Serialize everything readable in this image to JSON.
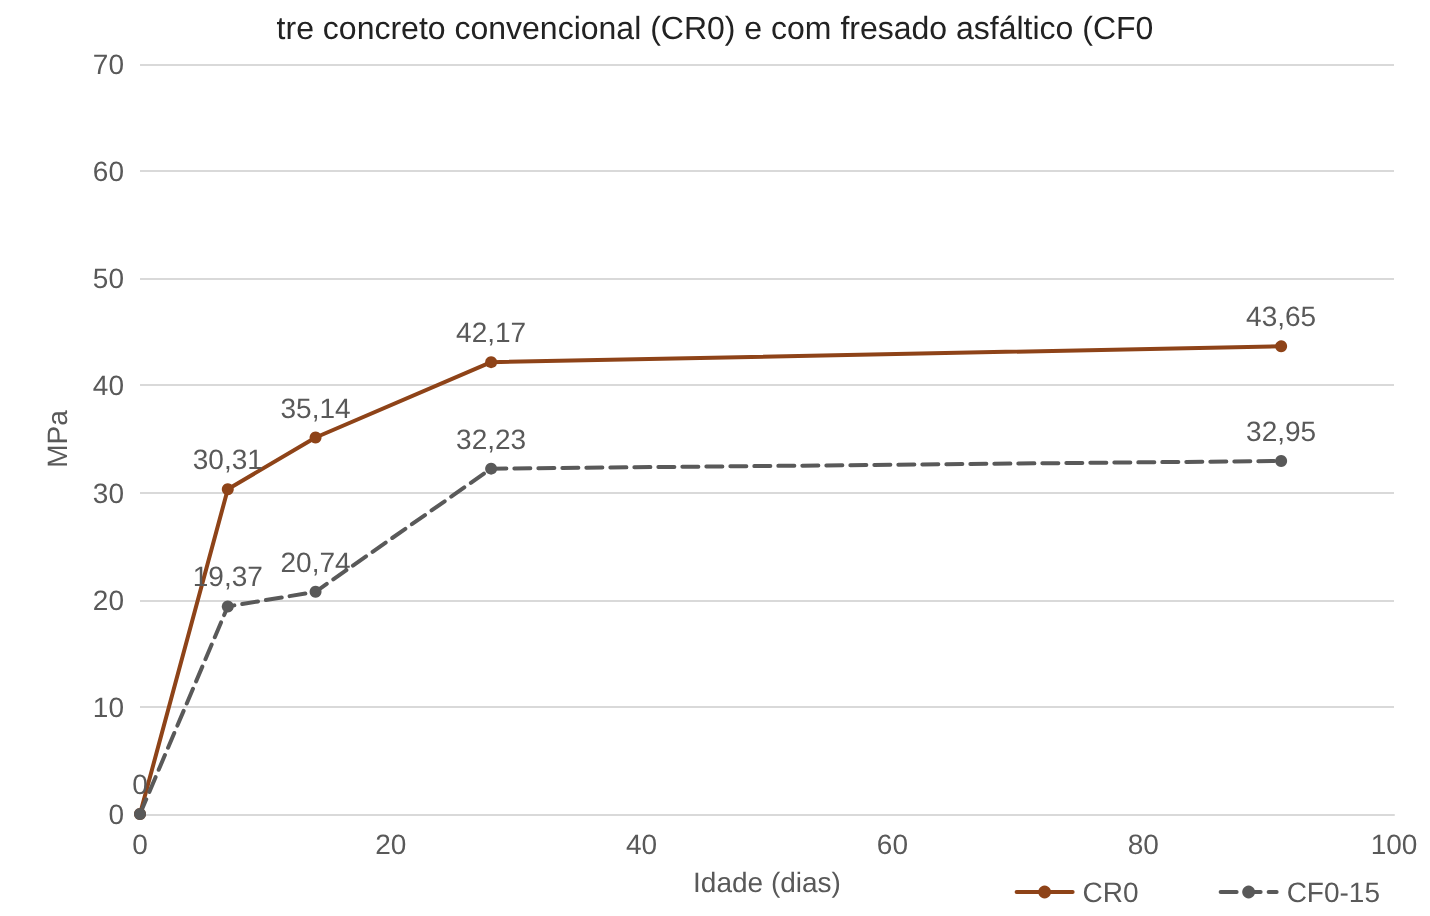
{
  "chart_data": {
    "type": "line",
    "title": "tre concreto convencional (CR0) e com fresado asfáltico (CF0",
    "xlabel": "Idade (dias)",
    "ylabel": "MPa",
    "x": [
      0,
      7,
      14,
      28,
      91
    ],
    "series": [
      {
        "name": "CR0",
        "color": "#8e4318",
        "values": [
          0,
          30.31,
          35.14,
          42.17,
          43.65
        ],
        "value_labels": [
          "0",
          "30,31",
          "35,14",
          "42,17",
          "43,65"
        ],
        "line_style": "solid"
      },
      {
        "name": "CF0-15",
        "color": "#595959",
        "values": [
          0,
          19.37,
          20.74,
          32.23,
          32.95
        ],
        "value_labels": [
          null,
          "19,37",
          "20,74",
          "32,23",
          "32,95"
        ],
        "line_style": "dashed"
      }
    ],
    "xlim": [
      0,
      100
    ],
    "xticks": [
      0,
      20,
      40,
      60,
      80,
      100
    ],
    "ylim": [
      0,
      70
    ],
    "yticks": [
      0,
      10,
      20,
      30,
      40,
      50,
      60,
      70
    ],
    "grid": "y",
    "legend": "bottom right",
    "marker": "circle"
  }
}
